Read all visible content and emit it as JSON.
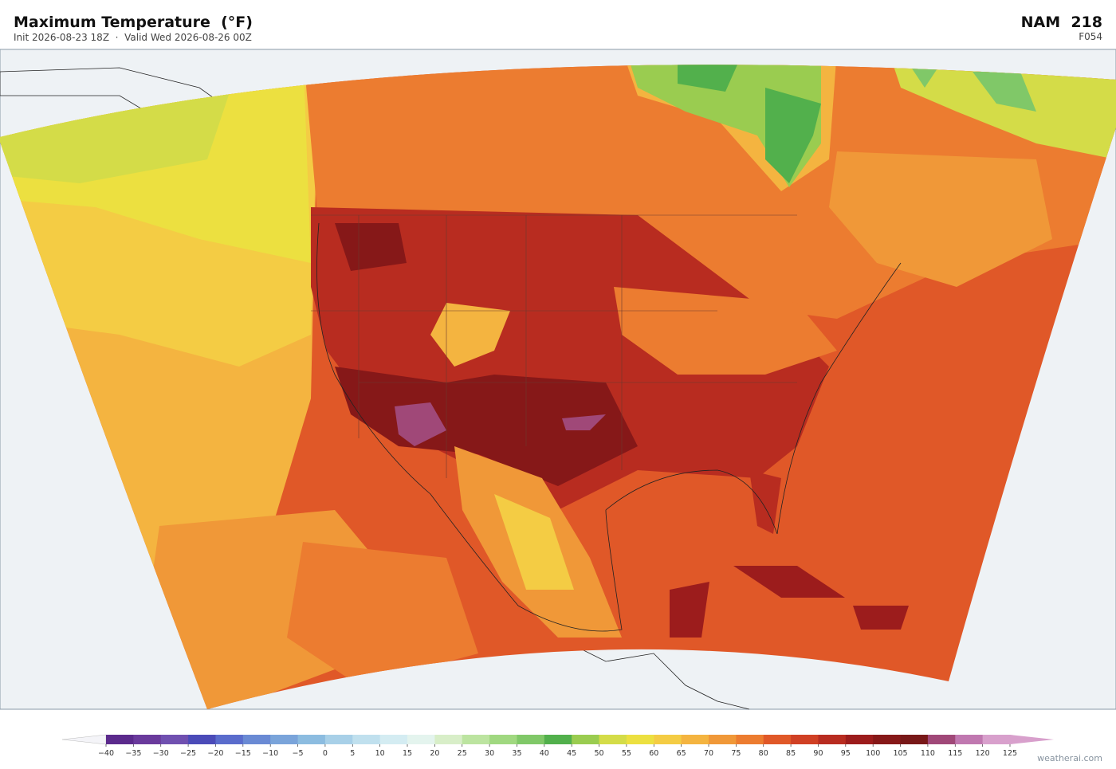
{
  "header": {
    "title": "Maximum Temperature  (°F)",
    "subtitle": "Init 2026-08-23 18Z  ·  Valid Wed 2026-08-26 00Z",
    "model": "NAM  218",
    "forecast_hour": "F054"
  },
  "colorbar": {
    "lim": [
      -40,
      125
    ],
    "ticks": [
      {
        "value": -40,
        "label": "−40"
      },
      {
        "value": -35,
        "label": "−35"
      },
      {
        "value": -30,
        "label": "−30"
      },
      {
        "value": -25,
        "label": "−25"
      },
      {
        "value": -20,
        "label": "−20"
      },
      {
        "value": -15,
        "label": "−15"
      },
      {
        "value": -10,
        "label": "−10"
      },
      {
        "value": -5,
        "label": "−5"
      },
      0,
      5,
      10,
      15,
      20,
      25,
      30,
      35,
      40,
      45,
      50,
      55,
      60,
      65,
      70,
      75,
      80,
      85,
      90,
      95,
      100,
      105,
      110,
      115,
      120,
      125
    ],
    "colors": [
      "#5b2a8c",
      "#6a3a9c",
      "#7050b0",
      "#4b4bb8",
      "#5a6ccc",
      "#6a8ad4",
      "#7aa4da",
      "#8cbce0",
      "#a8d0e8",
      "#c0e0ee",
      "#d4ecf2",
      "#e4f4ee",
      "#d8eec8",
      "#bce4a0",
      "#a0d880",
      "#80c868",
      "#52b04c",
      "#9acc50",
      "#d4dc48",
      "#ece040",
      "#f4cc44",
      "#f4b440",
      "#f09838",
      "#ec7c30",
      "#e05828",
      "#d04024",
      "#b82c20",
      "#9c1c1c",
      "#861818",
      "#781818",
      "#a04878",
      "#c078b0",
      "#d8a0cc"
    ],
    "under_color": "#f4f4f8",
    "over_color": "#d8a0cc"
  },
  "footer": {
    "credit": "weatherai.com"
  }
}
